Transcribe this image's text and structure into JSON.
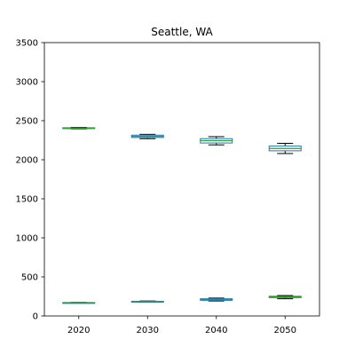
{
  "chart_data": {
    "type": "box",
    "title": "Seattle, WA",
    "xlabel": "",
    "ylabel": "",
    "categories": [
      "2020",
      "2030",
      "2040",
      "2050"
    ],
    "ylim": [
      0,
      3500
    ],
    "yticks": [
      0,
      500,
      1000,
      1500,
      2000,
      2500,
      3000,
      3500
    ],
    "grid": false,
    "series": [
      {
        "boxes": [
          {
            "whislo": 2395,
            "q1": 2400,
            "med": 2405,
            "q3": 2410,
            "whishi": 2415
          },
          {
            "whislo": 2270,
            "q1": 2285,
            "med": 2300,
            "q3": 2315,
            "whishi": 2325
          },
          {
            "whislo": 2190,
            "q1": 2215,
            "med": 2245,
            "q3": 2270,
            "whishi": 2295
          },
          {
            "whislo": 2080,
            "q1": 2115,
            "med": 2145,
            "q3": 2175,
            "whishi": 2210
          }
        ]
      },
      {
        "boxes": [
          {
            "whislo": 165,
            "q1": 168,
            "med": 170,
            "q3": 172,
            "whishi": 174
          },
          {
            "whislo": 178,
            "q1": 182,
            "med": 185,
            "q3": 188,
            "whishi": 192
          },
          {
            "whislo": 192,
            "q1": 200,
            "med": 210,
            "q3": 220,
            "whishi": 228
          },
          {
            "whislo": 220,
            "q1": 235,
            "med": 245,
            "q3": 252,
            "whishi": 262
          }
        ]
      }
    ],
    "colors": {
      "box": "#1f77b4",
      "median": "#2ca02c",
      "whisker": "#000000"
    }
  }
}
